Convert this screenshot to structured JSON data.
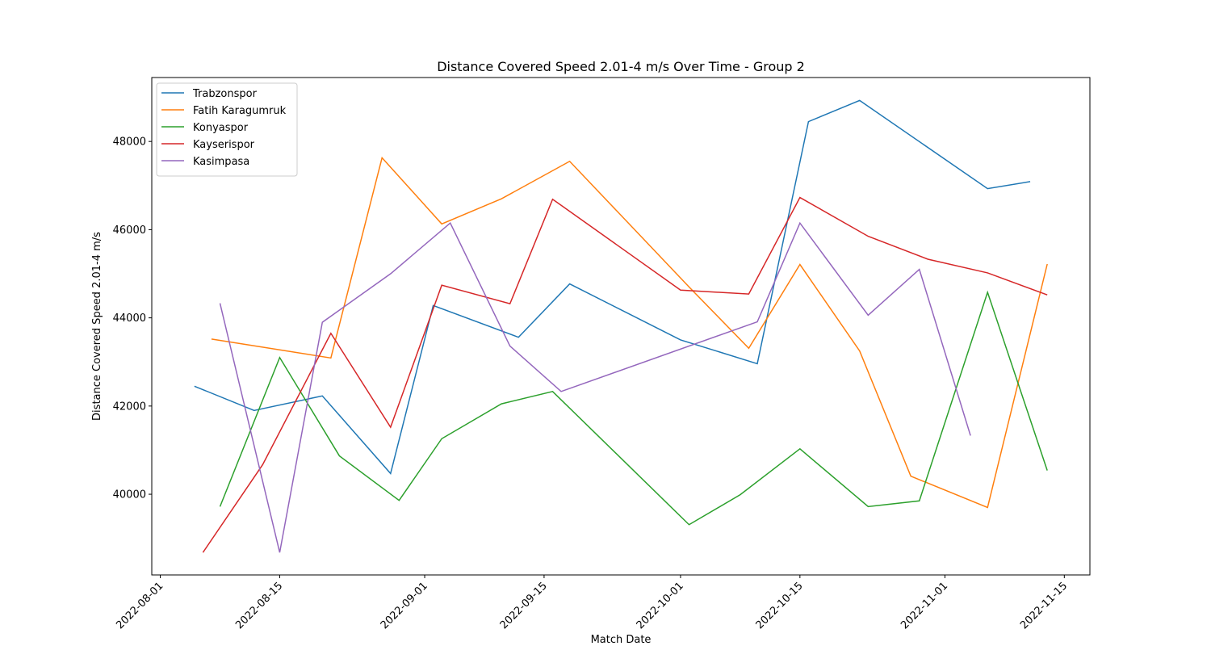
{
  "chart_data": {
    "type": "line",
    "title": "Distance Covered Speed 2.01-4 m/s Over Time - Group 2",
    "x_label": "Match Date",
    "y_label": "Distance Covered Speed 2.01-4 m/s",
    "xlim": [
      "2022-07-31",
      "2022-11-18"
    ],
    "xticks": [
      "2022-08-01",
      "2022-08-15",
      "2022-09-01",
      "2022-09-15",
      "2022-10-01",
      "2022-10-15",
      "2022-11-01",
      "2022-11-15"
    ],
    "ylim": [
      38170,
      49450
    ],
    "yticks": [
      40000,
      42000,
      44000,
      46000,
      48000
    ],
    "legend": "upper left",
    "grid": false,
    "series": [
      {
        "name": "Trabzonspor",
        "color": "#1f77b4",
        "x": [
          "2022-08-05",
          "2022-08-12",
          "2022-08-20",
          "2022-08-28",
          "2022-09-02",
          "2022-09-12",
          "2022-09-18",
          "2022-10-01",
          "2022-10-10",
          "2022-10-16",
          "2022-10-22",
          "2022-11-06",
          "2022-11-11"
        ],
        "values": [
          42450,
          41900,
          42230,
          40470,
          44280,
          43560,
          44770,
          43500,
          42960,
          48450,
          48930,
          46930,
          47090
        ]
      },
      {
        "name": "Fatih Karagumruk",
        "color": "#ff7f0e",
        "x": [
          "2022-08-07",
          "2022-08-21",
          "2022-08-27",
          "2022-09-03",
          "2022-09-10",
          "2022-09-18",
          "2022-10-02",
          "2022-10-09",
          "2022-10-15",
          "2022-10-22",
          "2022-10-28",
          "2022-11-06",
          "2022-11-13"
        ],
        "values": [
          43520,
          43090,
          47630,
          46130,
          46700,
          47550,
          44700,
          43310,
          45210,
          43250,
          40410,
          39700,
          45220
        ]
      },
      {
        "name": "Konyaspor",
        "color": "#2ca02c",
        "x": [
          "2022-08-08",
          "2022-08-15",
          "2022-08-22",
          "2022-08-29",
          "2022-09-03",
          "2022-09-10",
          "2022-09-16",
          "2022-10-02",
          "2022-10-08",
          "2022-10-15",
          "2022-10-23",
          "2022-10-29",
          "2022-11-06",
          "2022-11-13"
        ],
        "values": [
          39720,
          43100,
          40870,
          39860,
          41260,
          42050,
          42330,
          39310,
          39990,
          41030,
          39720,
          39850,
          44580,
          40540
        ]
      },
      {
        "name": "Kayserispor",
        "color": "#d62728",
        "x": [
          "2022-08-06",
          "2022-08-13",
          "2022-08-21",
          "2022-08-28",
          "2022-09-03",
          "2022-09-11",
          "2022-09-16",
          "2022-10-01",
          "2022-10-09",
          "2022-10-15",
          "2022-10-23",
          "2022-10-30",
          "2022-11-06",
          "2022-11-13"
        ],
        "values": [
          38680,
          40670,
          43650,
          41520,
          44740,
          44320,
          46690,
          44630,
          44540,
          46730,
          45850,
          45330,
          45020,
          44520
        ]
      },
      {
        "name": "Kasimpasa",
        "color": "#9467bd",
        "x": [
          "2022-08-08",
          "2022-08-15",
          "2022-08-20",
          "2022-08-28",
          "2022-09-04",
          "2022-09-11",
          "2022-09-17",
          "2022-10-10",
          "2022-10-15",
          "2022-10-23",
          "2022-10-29",
          "2022-11-04"
        ],
        "values": [
          44330,
          38680,
          43900,
          45000,
          46150,
          43360,
          42330,
          43910,
          46150,
          44060,
          45100,
          41330
        ]
      }
    ]
  }
}
